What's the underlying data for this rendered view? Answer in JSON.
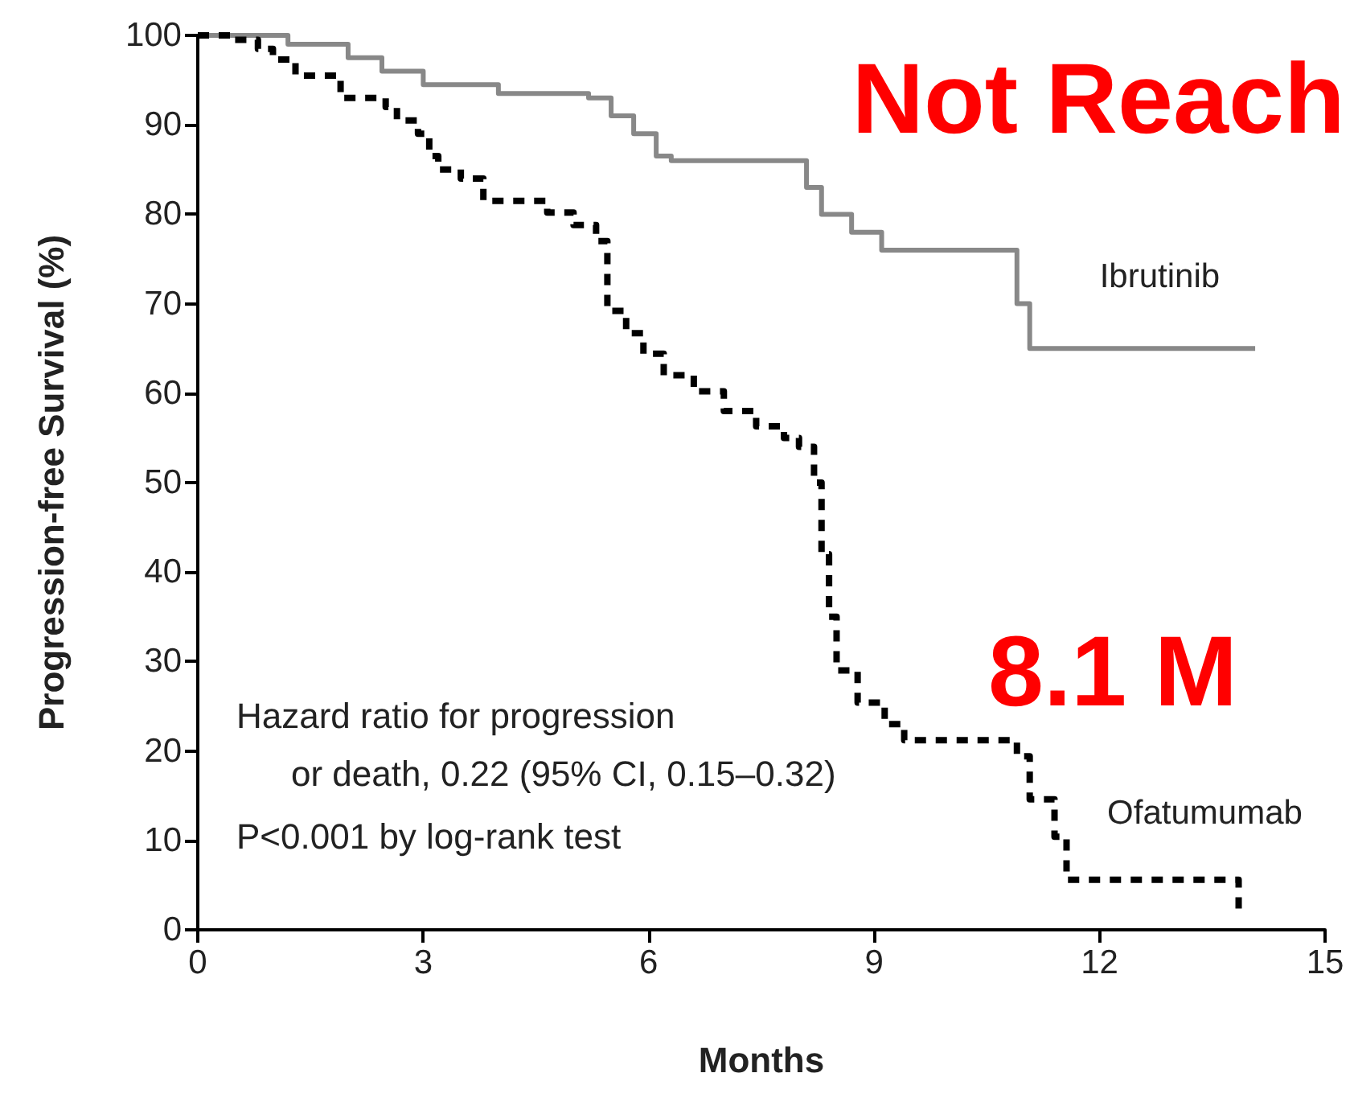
{
  "chart_data": {
    "type": "step",
    "xlabel": "Months",
    "ylabel": "Progression-free Survival (%)",
    "xlim": [
      0,
      15
    ],
    "xticks": [
      0,
      3,
      6,
      9,
      12,
      15
    ],
    "ylim": [
      0,
      100
    ],
    "yticks": [
      0,
      10,
      20,
      30,
      40,
      50,
      60,
      70,
      80,
      90,
      100
    ],
    "grid": false,
    "annotations": [
      "Not Reach",
      "8.1 M",
      "Hazard ratio for progression\nor death, 0.22 (95% CI, 0.15–0.32)",
      "P<0.001 by log-rank test"
    ],
    "series": [
      {
        "name": "Ibrutinib",
        "color": "#888888",
        "line_style": "solid",
        "x": [
          0,
          1.2,
          2.0,
          2.45,
          3.0,
          4.0,
          5.2,
          5.5,
          5.8,
          6.1,
          6.3,
          7.9,
          8.1,
          8.3,
          8.7,
          9.1,
          10.75,
          10.9,
          11.07,
          14.07
        ],
        "values": [
          100,
          99,
          97.5,
          96,
          94.5,
          93.5,
          93,
          91,
          89,
          86.5,
          86,
          86,
          83,
          80,
          78,
          76,
          76,
          70,
          65,
          65
        ]
      },
      {
        "name": "Ofatumumab",
        "color": "#000000",
        "line_style": "dashed",
        "x": [
          0,
          0.43,
          0.8,
          1.0,
          1.3,
          1.9,
          2.5,
          2.65,
          2.93,
          3.08,
          3.2,
          3.5,
          3.8,
          4.65,
          5.0,
          5.3,
          5.45,
          5.7,
          5.93,
          6.2,
          6.6,
          7.0,
          7.43,
          7.8,
          8.0,
          8.2,
          8.3,
          8.4,
          8.5,
          8.78,
          9.14,
          9.4,
          10.8,
          10.9,
          11.07,
          11.4,
          11.56,
          13.85
        ],
        "values": [
          100,
          99.5,
          98.5,
          97.3,
          95.5,
          93,
          92,
          90.5,
          89,
          86.5,
          85,
          84,
          81.5,
          80.2,
          78.8,
          77,
          69.2,
          66.7,
          64.4,
          62,
          60.2,
          58,
          56.3,
          55,
          54,
          50,
          42,
          35,
          29,
          25.4,
          23,
          21.2,
          21.2,
          19.4,
          14.6,
          10.4,
          5.6,
          2
        ]
      }
    ]
  }
}
